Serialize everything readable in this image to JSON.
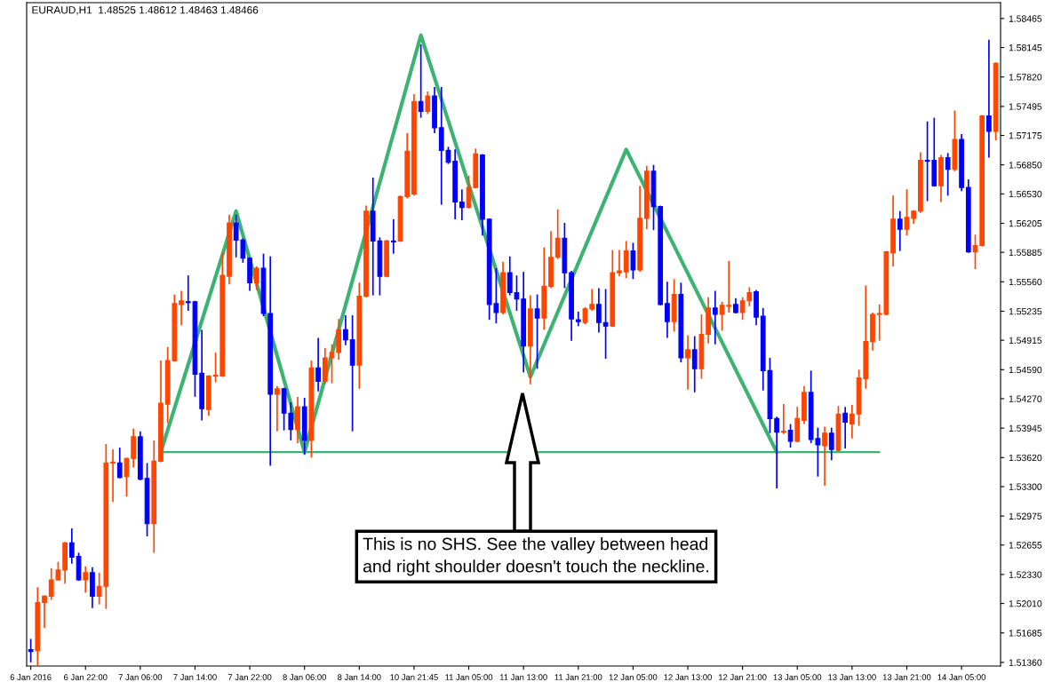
{
  "chart_data": {
    "type": "candlestick",
    "title": "EURAUD,H1  1.48525 1.48612 1.48463 1.48466",
    "categories": [
      "6 Jan 2016",
      null,
      null,
      null,
      null,
      null,
      null,
      null,
      "6 Jan 22:00",
      null,
      null,
      null,
      null,
      null,
      null,
      null,
      "7 Jan 06:00",
      null,
      null,
      null,
      null,
      null,
      null,
      null,
      "7 Jan 14:00",
      null,
      null,
      null,
      null,
      null,
      null,
      null,
      "7 Jan 22:00",
      null,
      null,
      null,
      null,
      null,
      null,
      null,
      "8 Jan 06:00",
      null,
      null,
      null,
      null,
      null,
      null,
      null,
      "8 Jan 14:00",
      null,
      null,
      null,
      null,
      null,
      null,
      null,
      "10 Jan 21:45",
      null,
      null,
      null,
      null,
      null,
      null,
      null,
      "11 Jan 05:00",
      null,
      null,
      null,
      null,
      null,
      null,
      null,
      "11 Jan 13:00",
      null,
      null,
      null,
      null,
      null,
      null,
      null,
      "11 Jan 21:00",
      null,
      null,
      null,
      null,
      null,
      null,
      null,
      "12 Jan 05:00",
      null,
      null,
      null,
      null,
      null,
      null,
      null,
      "12 Jan 13:00",
      null,
      null,
      null,
      null,
      null,
      null,
      null,
      "12 Jan 21:00",
      null,
      null,
      null,
      null,
      null,
      null,
      null,
      "13 Jan 05:00",
      null,
      null,
      null,
      null,
      null,
      null,
      null,
      "13 Jan 13:00",
      null,
      null,
      null,
      null,
      null,
      null,
      null,
      "13 Jan 21:00",
      null,
      null,
      null,
      null,
      null,
      null,
      null,
      "14 Jan 05:00",
      null,
      null,
      null,
      null,
      null
    ],
    "colors": [
      "#0000ff",
      "#ff4500",
      "#ff4500",
      "#ff4500",
      "#ff4500",
      "#ff4500",
      "#0000ff",
      "#0000ff",
      "#ff4500",
      "#0000ff",
      "#ff4500",
      "#ff4500",
      "#ff4500",
      "#0000ff",
      "#ff4500",
      "#ff4500",
      "#0000ff",
      "#0000ff",
      "#ff4500",
      "#ff4500",
      "#ff4500",
      "#ff4500",
      "#ff4500",
      "#0000ff",
      "#0000ff",
      "#0000ff",
      "#ff4500",
      "#ff4500",
      "#ff4500",
      "#ff4500",
      "#0000ff",
      "#0000ff",
      "#0000ff",
      "#ff4500",
      "#0000ff",
      "#0000ff",
      "#ff4500",
      "#0000ff",
      "#0000ff",
      "#ff4500",
      "#0000ff",
      "#ff4500",
      "#0000ff",
      "#ff4500",
      "#ff4500",
      "#ff4500",
      "#0000ff",
      "#0000ff",
      "#ff4500",
      "#ff4500",
      "#0000ff",
      "#0000ff",
      "#ff4500",
      "#0000ff",
      "#ff4500",
      "#ff4500",
      "#ff4500",
      "#0000ff",
      "#ff4500",
      "#0000ff",
      "#0000ff",
      "#0000ff",
      "#0000ff",
      "#0000ff",
      "#ff4500",
      "#ff4500",
      "#0000ff",
      "#0000ff",
      "#0000ff",
      "#ff4500",
      "#0000ff",
      "#0000ff",
      "#0000ff",
      "#ff4500",
      "#0000ff",
      "#ff4500",
      "#ff4500",
      "#ff4500",
      "#0000ff",
      "#0000ff",
      "#0000ff",
      "#ff4500",
      "#ff4500",
      "#0000ff",
      "#0000ff",
      "#ff4500",
      "#ff4500",
      "#ff4500",
      "#0000ff",
      "#ff4500",
      "#ff4500",
      "#0000ff",
      "#0000ff",
      "#0000ff",
      "#ff4500",
      "#0000ff",
      "#ff4500",
      "#0000ff",
      "#ff4500",
      "#ff4500",
      "#0000ff",
      "#ff4500",
      "#ff4500",
      "#0000ff",
      "#ff4500",
      "#ff4500",
      "#0000ff",
      "#0000ff",
      "#0000ff",
      "#0000ff",
      "#ff4500",
      "#0000ff",
      "#ff4500",
      "#ff4500",
      "#0000ff",
      "#0000ff",
      "#ff4500",
      "#0000ff",
      "#ff4500",
      "#0000ff",
      "#ff4500",
      "#ff4500",
      "#ff4500",
      "#ff4500",
      "#ff4500",
      "#ff4500",
      "#ff4500",
      "#0000ff",
      "#ff4500",
      "#ff4500",
      "#ff4500",
      "#0000ff",
      "#0000ff",
      "#ff4500",
      "#0000ff",
      "#ff4500",
      "#0000ff",
      "#0000ff",
      "#ff4500",
      "#ff4500",
      "#0000ff",
      "#ff4500"
    ],
    "ohlc": [
      [
        1.515,
        1.5162,
        1.5136,
        1.5148
      ],
      [
        1.5149,
        1.5219,
        1.5132,
        1.5202
      ],
      [
        1.5202,
        1.521,
        1.5174,
        1.5209
      ],
      [
        1.5209,
        1.524,
        1.5205,
        1.5227
      ],
      [
        1.5227,
        1.5247,
        1.5226,
        1.5238
      ],
      [
        1.5238,
        1.5269,
        1.5223,
        1.5268
      ],
      [
        1.5268,
        1.5284,
        1.5245,
        1.5252
      ],
      [
        1.5253,
        1.5257,
        1.5226,
        1.5227
      ],
      [
        1.5227,
        1.5242,
        1.5213,
        1.5235
      ],
      [
        1.5235,
        1.5241,
        1.5196,
        1.5209
      ],
      [
        1.5209,
        1.5235,
        1.52,
        1.522
      ],
      [
        1.522,
        1.5377,
        1.5195,
        1.5356
      ],
      [
        1.5356,
        1.5371,
        1.5313,
        1.5357
      ],
      [
        1.5356,
        1.5373,
        1.5339,
        1.534
      ],
      [
        1.5341,
        1.5362,
        1.5319,
        1.5361
      ],
      [
        1.5361,
        1.5394,
        1.5351,
        1.5385
      ],
      [
        1.5385,
        1.5391,
        1.5337,
        1.5338
      ],
      [
        1.5339,
        1.5356,
        1.5275,
        1.5289
      ],
      [
        1.5289,
        1.5381,
        1.5257,
        1.5358
      ],
      [
        1.5358,
        1.5469,
        1.5357,
        1.5422
      ],
      [
        1.5421,
        1.5484,
        1.54,
        1.5469
      ],
      [
        1.5469,
        1.5542,
        1.5468,
        1.5532
      ],
      [
        1.5531,
        1.5546,
        1.5508,
        1.5535
      ],
      [
        1.5534,
        1.5563,
        1.5524,
        1.5533
      ],
      [
        1.5534,
        1.5535,
        1.5429,
        1.5454
      ],
      [
        1.5455,
        1.5503,
        1.5403,
        1.5416
      ],
      [
        1.5415,
        1.5453,
        1.5408,
        1.5452
      ],
      [
        1.5452,
        1.5478,
        1.5445,
        1.5453
      ],
      [
        1.5452,
        1.5588,
        1.5451,
        1.5563
      ],
      [
        1.5562,
        1.563,
        1.5553,
        1.5621
      ],
      [
        1.5621,
        1.563,
        1.5583,
        1.5602
      ],
      [
        1.5602,
        1.5604,
        1.5577,
        1.5582
      ],
      [
        1.5582,
        1.5583,
        1.5546,
        1.5555
      ],
      [
        1.5555,
        1.5573,
        1.5547,
        1.5571
      ],
      [
        1.5571,
        1.5587,
        1.5518,
        1.5521
      ],
      [
        1.5521,
        1.5584,
        1.5353,
        1.5432
      ],
      [
        1.5432,
        1.5441,
        1.5391,
        1.5438
      ],
      [
        1.5438,
        1.5439,
        1.5392,
        1.5411
      ],
      [
        1.5411,
        1.5423,
        1.5381,
        1.5393
      ],
      [
        1.5393,
        1.5429,
        1.5378,
        1.5418
      ],
      [
        1.5418,
        1.5428,
        1.5365,
        1.5381
      ],
      [
        1.5381,
        1.5469,
        1.5362,
        1.5461
      ],
      [
        1.5461,
        1.5494,
        1.5435,
        1.5446
      ],
      [
        1.5446,
        1.5483,
        1.5443,
        1.5472
      ],
      [
        1.5472,
        1.5487,
        1.5444,
        1.5478
      ],
      [
        1.5478,
        1.5515,
        1.547,
        1.5503
      ],
      [
        1.5503,
        1.5519,
        1.5486,
        1.5492
      ],
      [
        1.5492,
        1.5519,
        1.5391,
        1.5464
      ],
      [
        1.5464,
        1.5555,
        1.5438,
        1.554
      ],
      [
        1.554,
        1.564,
        1.5539,
        1.5634
      ],
      [
        1.5634,
        1.5671,
        1.5541,
        1.5601
      ],
      [
        1.5601,
        1.5605,
        1.5541,
        1.5562
      ],
      [
        1.5562,
        1.5602,
        1.5561,
        1.5601
      ],
      [
        1.5601,
        1.5625,
        1.5587,
        1.56
      ],
      [
        1.5601,
        1.5651,
        1.56,
        1.565
      ],
      [
        1.565,
        1.572,
        1.5648,
        1.57
      ],
      [
        1.5653,
        1.5763,
        1.5651,
        1.5755
      ],
      [
        1.5755,
        1.5818,
        1.5737,
        1.5744
      ],
      [
        1.5744,
        1.5766,
        1.5741,
        1.5761
      ],
      [
        1.5761,
        1.5771,
        1.572,
        1.5726
      ],
      [
        1.5726,
        1.5771,
        1.5641,
        1.5701
      ],
      [
        1.5701,
        1.5705,
        1.5686,
        1.5688
      ],
      [
        1.5689,
        1.5702,
        1.5625,
        1.5644
      ],
      [
        1.5644,
        1.5658,
        1.5624,
        1.5638
      ],
      [
        1.5638,
        1.5673,
        1.5637,
        1.566
      ],
      [
        1.566,
        1.5703,
        1.5659,
        1.5697
      ],
      [
        1.5696,
        1.5697,
        1.5607,
        1.5625
      ],
      [
        1.5625,
        1.5626,
        1.5514,
        1.5531
      ],
      [
        1.5532,
        1.5571,
        1.551,
        1.5522
      ],
      [
        1.5522,
        1.5578,
        1.552,
        1.5566
      ],
      [
        1.5566,
        1.5584,
        1.5541,
        1.5544
      ],
      [
        1.5544,
        1.5563,
        1.5524,
        1.5537
      ],
      [
        1.5537,
        1.5567,
        1.5456,
        1.5485
      ],
      [
        1.5485,
        1.5541,
        1.5443,
        1.5526
      ],
      [
        1.5526,
        1.5542,
        1.546,
        1.5516
      ],
      [
        1.5516,
        1.5594,
        1.5503,
        1.5551
      ],
      [
        1.5551,
        1.5612,
        1.5549,
        1.5583
      ],
      [
        1.5583,
        1.5636,
        1.5581,
        1.5604
      ],
      [
        1.5604,
        1.5621,
        1.5549,
        1.5566
      ],
      [
        1.5566,
        1.5568,
        1.5491,
        1.5515
      ],
      [
        1.5514,
        1.5523,
        1.5507,
        1.5512
      ],
      [
        1.5511,
        1.5528,
        1.5509,
        1.5526
      ],
      [
        1.5526,
        1.5548,
        1.5524,
        1.5531
      ],
      [
        1.5531,
        1.5549,
        1.55,
        1.5511
      ],
      [
        1.5511,
        1.5548,
        1.5471,
        1.5507
      ],
      [
        1.5507,
        1.5591,
        1.5506,
        1.5566
      ],
      [
        1.5566,
        1.5591,
        1.5562,
        1.5568
      ],
      [
        1.5567,
        1.5601,
        1.556,
        1.559
      ],
      [
        1.559,
        1.5599,
        1.5559,
        1.5569
      ],
      [
        1.5569,
        1.5662,
        1.5567,
        1.5626
      ],
      [
        1.5626,
        1.5684,
        1.5614,
        1.5678
      ],
      [
        1.5678,
        1.5685,
        1.5613,
        1.5639
      ],
      [
        1.5639,
        1.564,
        1.553,
        1.5531
      ],
      [
        1.5532,
        1.5556,
        1.5494,
        1.5512
      ],
      [
        1.5512,
        1.5559,
        1.5501,
        1.5542
      ],
      [
        1.5542,
        1.5555,
        1.5467,
        1.5472
      ],
      [
        1.5472,
        1.5497,
        1.5437,
        1.5481
      ],
      [
        1.5481,
        1.5496,
        1.5434,
        1.546
      ],
      [
        1.546,
        1.552,
        1.5449,
        1.5498
      ],
      [
        1.5498,
        1.5539,
        1.5488,
        1.5527
      ],
      [
        1.5527,
        1.5546,
        1.5487,
        1.552
      ],
      [
        1.552,
        1.5534,
        1.5502,
        1.553
      ],
      [
        1.5529,
        1.5579,
        1.5522,
        1.553
      ],
      [
        1.5531,
        1.5538,
        1.5521,
        1.5522
      ],
      [
        1.5522,
        1.5539,
        1.5514,
        1.5535
      ],
      [
        1.5535,
        1.555,
        1.5529,
        1.5544
      ],
      [
        1.5545,
        1.5547,
        1.5508,
        1.5517
      ],
      [
        1.5518,
        1.5527,
        1.5436,
        1.5458
      ],
      [
        1.5458,
        1.5472,
        1.5389,
        1.5405
      ],
      [
        1.5405,
        1.5407,
        1.5328,
        1.539
      ],
      [
        1.539,
        1.5421,
        1.5388,
        1.5391
      ],
      [
        1.5392,
        1.5399,
        1.5373,
        1.538
      ],
      [
        1.538,
        1.5418,
        1.5379,
        1.5405
      ],
      [
        1.5403,
        1.5441,
        1.5399,
        1.5434
      ],
      [
        1.5434,
        1.5458,
        1.5378,
        1.5382
      ],
      [
        1.5383,
        1.5395,
        1.5341,
        1.5376
      ],
      [
        1.5375,
        1.5396,
        1.5331,
        1.5389
      ],
      [
        1.5389,
        1.5395,
        1.5359,
        1.5371
      ],
      [
        1.537,
        1.5419,
        1.5369,
        1.541
      ],
      [
        1.5411,
        1.5418,
        1.5372,
        1.5401
      ],
      [
        1.5399,
        1.542,
        1.5383,
        1.541
      ],
      [
        1.541,
        1.5459,
        1.5397,
        1.545
      ],
      [
        1.5449,
        1.5552,
        1.5438,
        1.549
      ],
      [
        1.549,
        1.5522,
        1.548,
        1.552
      ],
      [
        1.552,
        1.5531,
        1.5491,
        1.5521
      ],
      [
        1.552,
        1.559,
        1.5519,
        1.5589
      ],
      [
        1.5588,
        1.5651,
        1.5573,
        1.5625
      ],
      [
        1.5625,
        1.5634,
        1.559,
        1.5614
      ],
      [
        1.5614,
        1.5658,
        1.5607,
        1.5627
      ],
      [
        1.5626,
        1.5635,
        1.562,
        1.5634
      ],
      [
        1.5634,
        1.5699,
        1.5632,
        1.569
      ],
      [
        1.569,
        1.5733,
        1.5645,
        1.5689
      ],
      [
        1.569,
        1.5737,
        1.5661,
        1.5662
      ],
      [
        1.5662,
        1.5696,
        1.5644,
        1.5693
      ],
      [
        1.5693,
        1.5698,
        1.5651,
        1.568
      ],
      [
        1.568,
        1.5745,
        1.5678,
        1.5713
      ],
      [
        1.5713,
        1.5719,
        1.5656,
        1.566
      ],
      [
        1.566,
        1.5669,
        1.5588,
        1.5589
      ],
      [
        1.5589,
        1.5608,
        1.557,
        1.5596
      ],
      [
        1.5596,
        1.574,
        1.5595,
        1.5739
      ],
      [
        1.5739,
        1.5823,
        1.5693,
        1.5722
      ],
      [
        1.5722,
        1.5798,
        1.5712,
        1.5797
      ]
    ],
    "series": [
      {
        "type": "line",
        "color": "#3cb371",
        "values": [
          null,
          null,
          null,
          null,
          null,
          null,
          null,
          null,
          null,
          null,
          null,
          null,
          null,
          null,
          null,
          null,
          null,
          null,
          null,
          1.5368,
          null,
          null,
          null,
          null,
          null,
          null,
          null,
          null,
          null,
          null,
          1.5634,
          null,
          null,
          null,
          null,
          null,
          null,
          null,
          null,
          null,
          1.5368,
          null,
          null,
          null,
          null,
          null,
          null,
          null,
          null,
          null,
          null,
          null,
          null,
          null,
          null,
          null,
          null,
          1.5828,
          null,
          null,
          null,
          null,
          null,
          null,
          null,
          null,
          null,
          null,
          null,
          null,
          null,
          null,
          null,
          1.5451,
          null,
          null,
          null,
          null,
          null,
          null,
          null,
          null,
          null,
          null,
          null,
          null,
          null,
          1.5702,
          null,
          null,
          null,
          null,
          null,
          null,
          null,
          null,
          null,
          null,
          null,
          null,
          null,
          null,
          null,
          null,
          null,
          null,
          null,
          null,
          null,
          1.5368,
          null,
          null,
          null,
          null,
          null,
          null,
          null,
          null,
          null,
          null,
          null,
          null,
          null,
          null,
          null,
          null,
          null,
          null,
          null,
          null,
          null,
          null,
          null,
          null,
          null,
          null,
          null,
          null,
          null,
          null,
          null,
          null
        ]
      },
      {
        "type": "line",
        "color": "#3cb371",
        "values": [
          null,
          null,
          null,
          null,
          null,
          null,
          null,
          null,
          null,
          null,
          null,
          null,
          null,
          null,
          null,
          null,
          null,
          null,
          null,
          1.5368,
          null,
          null,
          null,
          null,
          null,
          null,
          null,
          null,
          null,
          null,
          null,
          null,
          null,
          null,
          null,
          null,
          null,
          null,
          null,
          null,
          null,
          null,
          null,
          null,
          null,
          null,
          null,
          null,
          null,
          null,
          null,
          null,
          null,
          null,
          null,
          null,
          null,
          null,
          null,
          null,
          null,
          null,
          null,
          null,
          null,
          null,
          null,
          null,
          null,
          null,
          null,
          null,
          null,
          null,
          null,
          null,
          null,
          null,
          null,
          null,
          null,
          null,
          null,
          null,
          null,
          null,
          null,
          null,
          null,
          null,
          null,
          null,
          null,
          null,
          null,
          null,
          null,
          null,
          null,
          null,
          null,
          null,
          null,
          null,
          null,
          null,
          null,
          null,
          null,
          null,
          null,
          null,
          null,
          null,
          null,
          null,
          null,
          null,
          null,
          null,
          null,
          null,
          null,
          null,
          1.5368,
          null,
          null,
          null,
          null,
          null,
          null,
          null,
          null,
          null,
          null,
          null,
          null,
          null,
          null,
          null,
          null,
          null
        ]
      }
    ],
    "annotations": [
      "This is no SHS. See the valley between head\nand right shoulder doesn't touch the neckline."
    ],
    "ylim": [
      1.5132,
      1.5864
    ],
    "yticks": [
      1.58465,
      1.58145,
      {
        "value": 1.5782,
        "label": "1.57820"
      },
      1.57495,
      1.57175,
      {
        "value": 1.5685,
        "label": "1.56850"
      },
      {
        "value": 1.5653,
        "label": "1.56530"
      },
      1.56205,
      1.55885,
      {
        "value": 1.5556,
        "label": "1.55560"
      },
      1.55235,
      1.54915,
      {
        "value": 1.5459,
        "label": "1.54590"
      },
      {
        "value": 1.5427,
        "label": "1.54270"
      },
      1.53945,
      {
        "value": 1.5362,
        "label": "1.53620"
      },
      {
        "value": 1.533,
        "label": "1.53300"
      },
      1.52975,
      1.52655,
      {
        "value": 1.5233,
        "label": "1.52330"
      },
      {
        "value": 1.5201,
        "label": "1.52010"
      },
      1.51685,
      {
        "value": 1.5136,
        "label": "1.51360"
      }
    ],
    "grid": false
  }
}
